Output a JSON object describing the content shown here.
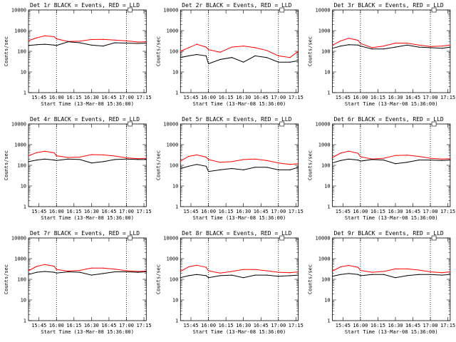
{
  "colors": {
    "events": "#000000",
    "lld": "#ff0000",
    "axis": "#000000"
  },
  "common": {
    "ylabel": "Counts/sec",
    "xlabel": "Start Time (13-Mar-08 15:36:00)",
    "x_ticks": [
      "15:45",
      "16:00",
      "16:15",
      "16:30",
      "16:45",
      "17:00",
      "17:15"
    ],
    "y_ticks": [
      "1",
      "10",
      "100",
      "1000",
      "10000"
    ],
    "x_start_min": 936,
    "x_end_min": 1037,
    "vlines_min": [
      960,
      1020
    ],
    "ylim": [
      1,
      10000
    ],
    "yscale": "log",
    "series": [
      {
        "name": "Events",
        "color": "#000000"
      },
      {
        "name": "LLD",
        "color": "#ff0000"
      }
    ]
  },
  "chart_data": [
    {
      "type": "line",
      "title": "Det 1r BLACK = Events, RED = LLD",
      "x": [
        936,
        943,
        950,
        958,
        960,
        970,
        980,
        990,
        1000,
        1010,
        1020,
        1030,
        1037
      ],
      "series": [
        {
          "name": "LLD",
          "values": [
            330,
            450,
            560,
            510,
            400,
            300,
            310,
            370,
            380,
            350,
            320,
            280,
            290
          ]
        },
        {
          "name": "Events",
          "values": [
            190,
            210,
            220,
            200,
            190,
            290,
            260,
            200,
            180,
            260,
            250,
            240,
            250
          ]
        }
      ]
    },
    {
      "type": "line",
      "title": "Det 2r BLACK = Events, RED = LLD",
      "x": [
        936,
        943,
        950,
        958,
        960,
        970,
        980,
        990,
        1000,
        1010,
        1020,
        1030,
        1037
      ],
      "series": [
        {
          "name": "LLD",
          "values": [
            100,
            150,
            220,
            160,
            120,
            90,
            160,
            180,
            150,
            110,
            60,
            50,
            100
          ]
        },
        {
          "name": "Events",
          "values": [
            50,
            60,
            70,
            60,
            25,
            40,
            50,
            30,
            60,
            50,
            30,
            30,
            35
          ]
        }
      ]
    },
    {
      "type": "line",
      "title": "Det 3r BLACK = Events, RED = LLD",
      "x": [
        936,
        943,
        950,
        958,
        960,
        970,
        980,
        990,
        1000,
        1010,
        1020,
        1030,
        1037
      ],
      "series": [
        {
          "name": "LLD",
          "values": [
            200,
            320,
            430,
            340,
            240,
            150,
            180,
            250,
            250,
            200,
            170,
            180,
            200
          ]
        },
        {
          "name": "Events",
          "values": [
            140,
            180,
            210,
            200,
            180,
            130,
            130,
            160,
            200,
            160,
            150,
            140,
            160
          ]
        }
      ]
    },
    {
      "type": "line",
      "title": "Det 4r BLACK = Events, RED = LLD",
      "x": [
        936,
        943,
        950,
        958,
        960,
        970,
        980,
        990,
        1000,
        1010,
        1020,
        1030,
        1037
      ],
      "series": [
        {
          "name": "LLD",
          "values": [
            290,
            410,
            480,
            400,
            290,
            240,
            250,
            330,
            320,
            280,
            230,
            210,
            220
          ]
        },
        {
          "name": "Events",
          "values": [
            150,
            180,
            200,
            180,
            170,
            200,
            190,
            130,
            150,
            190,
            200,
            190,
            190
          ]
        }
      ]
    },
    {
      "type": "line",
      "title": "Det 5r BLACK = Events, RED = LLD",
      "x": [
        936,
        943,
        950,
        958,
        960,
        970,
        980,
        990,
        1000,
        1010,
        1020,
        1030,
        1037
      ],
      "series": [
        {
          "name": "LLD",
          "values": [
            160,
            270,
            320,
            250,
            190,
            140,
            150,
            190,
            200,
            170,
            130,
            110,
            120
          ]
        },
        {
          "name": "Events",
          "values": [
            70,
            90,
            110,
            90,
            50,
            60,
            70,
            60,
            80,
            80,
            60,
            60,
            80
          ]
        }
      ]
    },
    {
      "type": "line",
      "title": "Det 6r BLACK = Events, RED = LLD",
      "x": [
        936,
        943,
        950,
        958,
        960,
        970,
        980,
        990,
        1000,
        1010,
        1020,
        1030,
        1037
      ],
      "series": [
        {
          "name": "LLD",
          "values": [
            240,
            390,
            480,
            380,
            260,
            200,
            220,
            300,
            310,
            270,
            220,
            200,
            210
          ]
        },
        {
          "name": "Events",
          "values": [
            130,
            170,
            200,
            180,
            160,
            190,
            180,
            120,
            140,
            180,
            180,
            170,
            180
          ]
        }
      ]
    },
    {
      "type": "line",
      "title": "Det 7r BLACK = Events, RED = LLD",
      "x": [
        936,
        943,
        950,
        958,
        960,
        970,
        980,
        990,
        1000,
        1010,
        1020,
        1030,
        1037
      ],
      "series": [
        {
          "name": "LLD",
          "values": [
            260,
            420,
            520,
            430,
            300,
            250,
            270,
            350,
            350,
            310,
            260,
            240,
            250
          ]
        },
        {
          "name": "Events",
          "values": [
            170,
            220,
            240,
            220,
            200,
            230,
            220,
            160,
            190,
            230,
            230,
            220,
            230
          ]
        }
      ]
    },
    {
      "type": "line",
      "title": "Det 8r BLACK = Events, RED = LLD",
      "x": [
        936,
        943,
        950,
        958,
        960,
        970,
        980,
        990,
        1000,
        1010,
        1020,
        1030,
        1037
      ],
      "series": [
        {
          "name": "LLD",
          "values": [
            240,
            400,
            480,
            380,
            260,
            200,
            240,
            300,
            300,
            260,
            220,
            210,
            230
          ]
        },
        {
          "name": "Events",
          "values": [
            120,
            150,
            170,
            150,
            120,
            150,
            160,
            120,
            160,
            160,
            140,
            150,
            160
          ]
        }
      ]
    },
    {
      "type": "line",
      "title": "Det 9r BLACK = Events, RED = LLD",
      "x": [
        936,
        943,
        950,
        958,
        960,
        970,
        980,
        990,
        1000,
        1010,
        1020,
        1030,
        1037
      ],
      "series": [
        {
          "name": "LLD",
          "values": [
            250,
            400,
            470,
            380,
            270,
            220,
            240,
            320,
            320,
            280,
            230,
            210,
            230
          ]
        },
        {
          "name": "Events",
          "values": [
            140,
            170,
            190,
            170,
            150,
            170,
            170,
            120,
            150,
            170,
            170,
            160,
            170
          ]
        }
      ]
    }
  ]
}
